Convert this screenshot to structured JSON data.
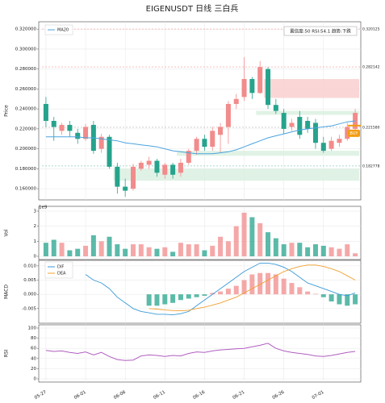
{
  "chart_data": [
    {
      "type": "candlestick",
      "title": "EIGENUSDT  日线  三白兵",
      "ylabel": "Price",
      "info": "置信度:50 RSI:54.1 趋势:下跌",
      "open": [
        0.245,
        0.228,
        0.218,
        0.224,
        0.216,
        0.21,
        0.224,
        0.2,
        0.212,
        0.182,
        0.162,
        0.16,
        0.18,
        0.184,
        0.188,
        0.174,
        0.184,
        0.176,
        0.186,
        0.198,
        0.21,
        0.202,
        0.214,
        0.222,
        0.245,
        0.252,
        0.27,
        0.256,
        0.28,
        0.244,
        0.236,
        0.222,
        0.232,
        0.228,
        0.226,
        0.206,
        0.2,
        0.206,
        0.21,
        0.22
      ],
      "high": [
        0.252,
        0.232,
        0.226,
        0.228,
        0.22,
        0.225,
        0.228,
        0.215,
        0.214,
        0.186,
        0.17,
        0.185,
        0.188,
        0.192,
        0.19,
        0.186,
        0.186,
        0.19,
        0.2,
        0.212,
        0.214,
        0.222,
        0.226,
        0.248,
        0.255,
        0.292,
        0.272,
        0.288,
        0.282,
        0.25,
        0.24,
        0.23,
        0.238,
        0.232,
        0.23,
        0.212,
        0.212,
        0.214,
        0.226,
        0.24
      ],
      "low": [
        0.222,
        0.208,
        0.214,
        0.212,
        0.205,
        0.208,
        0.195,
        0.196,
        0.18,
        0.155,
        0.152,
        0.158,
        0.178,
        0.18,
        0.172,
        0.17,
        0.17,
        0.172,
        0.184,
        0.194,
        0.198,
        0.198,
        0.196,
        0.205,
        0.24,
        0.248,
        0.25,
        0.255,
        0.24,
        0.235,
        0.215,
        0.218,
        0.21,
        0.216,
        0.2,
        0.196,
        0.198,
        0.202,
        0.208,
        0.215
      ],
      "close": [
        0.228,
        0.222,
        0.224,
        0.218,
        0.21,
        0.222,
        0.198,
        0.212,
        0.182,
        0.162,
        0.158,
        0.182,
        0.186,
        0.188,
        0.176,
        0.184,
        0.174,
        0.186,
        0.198,
        0.21,
        0.202,
        0.218,
        0.222,
        0.245,
        0.25,
        0.27,
        0.256,
        0.282,
        0.244,
        0.238,
        0.22,
        0.226,
        0.214,
        0.22,
        0.206,
        0.198,
        0.208,
        0.21,
        0.222,
        0.236
      ],
      "up_color": "#f28b8b",
      "down_color": "#26a38c",
      "series": [
        {
          "name": "MA20",
          "color": "#4aa3df",
          "values": [
            0.212,
            0.212,
            0.212,
            0.212,
            0.212,
            0.211,
            0.211,
            0.21,
            0.209,
            0.208,
            0.206,
            0.205,
            0.204,
            0.203,
            0.202,
            0.2,
            0.198,
            0.197,
            0.196,
            0.195,
            0.195,
            0.195,
            0.196,
            0.197,
            0.199,
            0.202,
            0.205,
            0.208,
            0.211,
            0.213,
            0.215,
            0.217,
            0.219,
            0.22,
            0.221,
            0.222,
            0.223,
            0.225,
            0.227,
            0.228
          ]
        }
      ],
      "legend": "upper left",
      "zones": [
        {
          "low": 0.251,
          "high": 0.27,
          "start": 28,
          "color": "#f9cccc"
        },
        {
          "low": 0.234,
          "high": 0.238,
          "start": 27,
          "color": "#d8efdf"
        },
        {
          "low": 0.193,
          "high": 0.198,
          "start": 17,
          "color": "#d8efdf"
        },
        {
          "low": 0.168,
          "high": 0.18,
          "start": 9,
          "color": "#d8efdf"
        }
      ],
      "levels": [
        {
          "value": 0.320125,
          "color": "#f06060"
        },
        {
          "value": 0.282142,
          "color": "#f06060"
        },
        {
          "value": 0.22158,
          "label": "0.221580",
          "color": "#888888"
        },
        {
          "value": 0.182778,
          "color": "#26a38c"
        }
      ],
      "signal": {
        "text": "BUY",
        "price": 0.216,
        "color": "#f39c12"
      },
      "ylim": [
        0.152,
        0.325
      ],
      "yticks": [
        {
          "value": 0.16,
          "label": "0.160000"
        },
        {
          "value": 0.18,
          "label": "0.180000"
        },
        {
          "value": 0.2,
          "label": "0.200000"
        },
        {
          "value": 0.22,
          "label": "0.220000"
        },
        {
          "value": 0.24,
          "label": "0.240000"
        },
        {
          "value": 0.26,
          "label": "0.260000"
        },
        {
          "value": 0.28,
          "label": "0.280000"
        },
        {
          "value": 0.3,
          "label": "0.300000"
        },
        {
          "value": 0.32,
          "label": "0.320000"
        }
      ],
      "grid": true
    },
    {
      "type": "bar",
      "ylabel": "Vol",
      "scale_label": "1e9",
      "values": [
        0.9,
        1.1,
        0.9,
        0.4,
        0.5,
        0.7,
        1.4,
        1.0,
        1.3,
        0.8,
        0.5,
        0.8,
        0.8,
        0.6,
        0.5,
        0.6,
        0.3,
        0.9,
        0.8,
        0.8,
        0.4,
        0.7,
        1.3,
        1.0,
        2.0,
        2.9,
        2.6,
        2.2,
        1.6,
        1.2,
        0.8,
        0.9,
        0.9,
        0.6,
        0.8,
        0.7,
        0.6,
        0.5,
        0.8,
        0.2
      ],
      "ylim": [
        0,
        3
      ],
      "yticks": [
        0,
        1,
        2,
        3
      ],
      "grid": true
    },
    {
      "type": "line",
      "ylabel": "MACD",
      "series": [
        {
          "name": "DIF",
          "color": "#3a9ad9",
          "values": [
            null,
            null,
            null,
            null,
            null,
            0.007,
            0.005,
            0.004,
            0.002,
            -0.001,
            -0.003,
            -0.005,
            -0.006,
            -0.0065,
            -0.007,
            -0.007,
            -0.0072,
            -0.0068,
            -0.006,
            -0.004,
            -0.002,
            0,
            0.002,
            0.004,
            0.006,
            0.008,
            0.0095,
            0.011,
            0.011,
            0.0105,
            0.0095,
            0.008,
            0.006,
            0.004,
            0.003,
            0.002,
            0.001,
            0,
            -0.0005,
            0.0005
          ]
        },
        {
          "name": "DEA",
          "color": "#f0a030",
          "values": [
            null,
            null,
            null,
            null,
            null,
            null,
            null,
            null,
            null,
            null,
            null,
            null,
            null,
            -0.005,
            -0.0052,
            -0.0055,
            -0.0057,
            -0.0058,
            -0.0056,
            -0.005,
            -0.0045,
            -0.0038,
            -0.003,
            -0.002,
            -0.001,
            0.0005,
            0.002,
            0.0035,
            0.005,
            0.0065,
            0.008,
            0.009,
            0.0098,
            0.0103,
            0.0103,
            0.0098,
            0.009,
            0.008,
            0.0065,
            0.005
          ]
        }
      ],
      "histogram": [
        null,
        null,
        null,
        null,
        null,
        null,
        null,
        null,
        null,
        null,
        null,
        null,
        null,
        -0.004,
        -0.004,
        -0.0035,
        -0.003,
        -0.002,
        -0.0015,
        -0.001,
        -0.0005,
        0.0005,
        0.001,
        0.002,
        0.003,
        0.005,
        0.007,
        0.0075,
        0.0075,
        0.007,
        0.0055,
        0.004,
        0.0025,
        0.001,
        0.0002,
        -0.001,
        -0.0025,
        -0.0035,
        -0.004,
        -0.0035
      ],
      "up_color": "#f28b8b",
      "down_color": "#26a38c",
      "legend": "upper left",
      "ylim": [
        -0.0093,
        0.0111
      ],
      "yticks": [
        -0.005,
        {
          "value": 0,
          "label": "0.000"
        },
        0.005,
        {
          "value": 0.01,
          "label": "0.010"
        }
      ],
      "grid": true
    },
    {
      "type": "line",
      "ylabel": "RSI",
      "categories": [
        "05-27",
        null,
        null,
        null,
        null,
        "06-01",
        null,
        null,
        null,
        null,
        "06-06",
        null,
        null,
        null,
        null,
        "06-11",
        null,
        null,
        null,
        null,
        "06-16",
        null,
        null,
        null,
        null,
        "06-21",
        null,
        null,
        null,
        null,
        "06-26",
        null,
        null,
        null,
        null,
        "07-01",
        null,
        null,
        null,
        null
      ],
      "values": [
        56,
        54,
        55,
        52,
        50,
        53,
        47,
        52,
        44,
        38,
        36,
        37,
        45,
        47,
        46,
        44,
        46,
        45,
        50,
        53,
        52,
        55,
        57,
        58,
        59,
        60,
        63,
        66,
        70,
        60,
        55,
        52,
        50,
        48,
        45,
        44,
        46,
        49,
        52,
        54
      ],
      "color": "#b05ec0",
      "ylim": [
        0,
        100
      ],
      "yticks": [
        0,
        20,
        40,
        60,
        80,
        100
      ],
      "grid": true
    }
  ]
}
